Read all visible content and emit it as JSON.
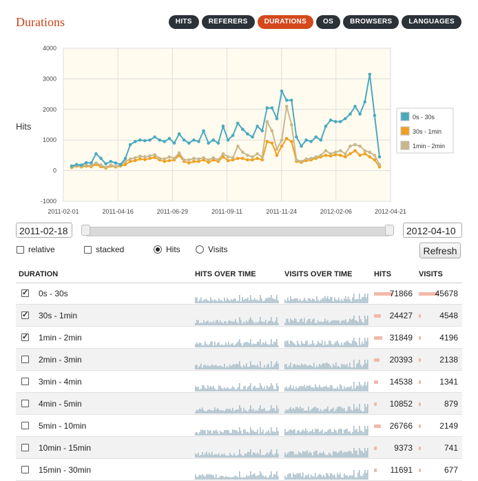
{
  "page": {
    "title": "Durations"
  },
  "tabs": [
    "HITS",
    "REFERERS",
    "DURATIONS",
    "OS",
    "BROWSERS",
    "LANGUAGES"
  ],
  "active_tab": "DURATIONS",
  "chart_data": {
    "type": "line",
    "ylabel": "Hits",
    "ylim": [
      -1000,
      4000
    ],
    "yticks": [
      "4000",
      "3000",
      "2000",
      "1000",
      "0",
      "-1000"
    ],
    "xticks": [
      "2011-02-01",
      "2011-04-16",
      "2011-06-29",
      "2011-09-11",
      "2011-11-24",
      "2012-02-06",
      "2012-04-21"
    ],
    "grid": true,
    "legend_position": "right",
    "series": [
      {
        "name": "0s - 30s",
        "color": "#4aa9bf",
        "values": [
          150,
          200,
          180,
          260,
          250,
          550,
          400,
          220,
          300,
          250,
          200,
          400,
          850,
          950,
          1000,
          980,
          1000,
          1100,
          1000,
          950,
          1050,
          900,
          1200,
          1000,
          900,
          1000,
          950,
          1300,
          900,
          1000,
          900,
          1450,
          1000,
          1150,
          1550,
          1350,
          1200,
          1100,
          1450,
          1300,
          2050,
          2050,
          1700,
          2600,
          2300,
          2300,
          1100,
          800,
          1000,
          950,
          1100,
          1000,
          1450,
          1650,
          1600,
          1600,
          1700,
          1850,
          2100,
          1850,
          2250,
          3150,
          1800,
          450
        ]
      },
      {
        "name": "30s - 1min",
        "color": "#f0a020",
        "values": [
          100,
          150,
          120,
          150,
          130,
          200,
          130,
          80,
          150,
          120,
          150,
          200,
          300,
          330,
          380,
          360,
          400,
          430,
          350,
          300,
          330,
          350,
          500,
          300,
          250,
          300,
          300,
          350,
          270,
          350,
          300,
          450,
          330,
          350,
          400,
          400,
          350,
          350,
          400,
          350,
          950,
          900,
          500,
          800,
          1050,
          950,
          300,
          270,
          330,
          350,
          400,
          450,
          500,
          480,
          520,
          500,
          450,
          550,
          650,
          500,
          550,
          450,
          350,
          120
        ]
      },
      {
        "name": "1min - 2min",
        "color": "#c8b88a",
        "values": [
          120,
          170,
          140,
          180,
          160,
          250,
          180,
          100,
          180,
          140,
          170,
          300,
          380,
          420,
          470,
          450,
          480,
          520,
          400,
          380,
          450,
          400,
          580,
          350,
          350,
          400,
          380,
          420,
          350,
          420,
          350,
          550,
          450,
          420,
          800,
          600,
          500,
          450,
          550,
          450,
          1600,
          1300,
          700,
          1000,
          2100,
          1500,
          350,
          300,
          380,
          400,
          450,
          500,
          650,
          550,
          600,
          650,
          550,
          800,
          850,
          800,
          650,
          600,
          500,
          200
        ]
      }
    ]
  },
  "controls": {
    "date_from": "2011-02-18",
    "date_to": "2012-04-10",
    "range_start": 0.0,
    "range_end": 1.0,
    "relative_label": "relative",
    "stacked_label": "stacked",
    "hits_label": "Hits",
    "visits_label": "Visits",
    "refresh_label": "Refresh"
  },
  "table": {
    "headers": [
      "DURATION",
      "HITS OVER TIME",
      "VISITS OVER TIME",
      "HITS",
      "VISITS"
    ],
    "rows": [
      {
        "label": "0s - 30s",
        "checked": true,
        "hits": "71866",
        "visits": "45678",
        "hits_frac": 1.0,
        "visits_frac": 1.0
      },
      {
        "label": "30s - 1min",
        "checked": true,
        "hits": "24427",
        "visits": "4548",
        "hits_frac": 0.34,
        "visits_frac": 0.1
      },
      {
        "label": "1min - 2min",
        "checked": true,
        "hits": "31849",
        "visits": "4196",
        "hits_frac": 0.44,
        "visits_frac": 0.09
      },
      {
        "label": "2min - 3min",
        "checked": false,
        "hits": "20393",
        "visits": "2138",
        "hits_frac": 0.28,
        "visits_frac": 0.05
      },
      {
        "label": "3min - 4min",
        "checked": false,
        "hits": "14538",
        "visits": "1341",
        "hits_frac": 0.2,
        "visits_frac": 0.03
      },
      {
        "label": "4min - 5min",
        "checked": false,
        "hits": "10852",
        "visits": "879",
        "hits_frac": 0.15,
        "visits_frac": 0.02
      },
      {
        "label": "5min - 10min",
        "checked": false,
        "hits": "26766",
        "visits": "2149",
        "hits_frac": 0.37,
        "visits_frac": 0.05
      },
      {
        "label": "10min - 15min",
        "checked": false,
        "hits": "9373",
        "visits": "741",
        "hits_frac": 0.13,
        "visits_frac": 0.02
      },
      {
        "label": "15min - 30min",
        "checked": false,
        "hits": "11691",
        "visits": "677",
        "hits_frac": 0.16,
        "visits_frac": 0.01
      }
    ]
  }
}
